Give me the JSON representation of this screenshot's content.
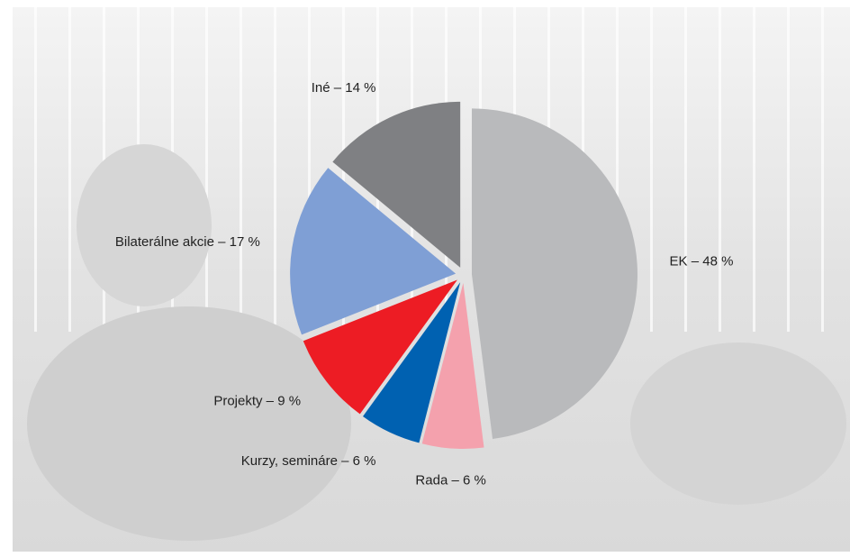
{
  "chart_data": {
    "type": "pie",
    "values": [
      48,
      6,
      6,
      9,
      17,
      14
    ],
    "value_labels": [
      "EK – 48 %",
      "Rada – 6 %",
      "Kurzy, semináre – 6 %",
      "Projekty – 9 %",
      "Bilaterálne akcie – 17 %",
      "Iné – 14 %"
    ],
    "colors": [
      "#b9babc",
      "#f4a1ad",
      "#0061b1",
      "#ed1c24",
      "#7f9fd5",
      "#7f8083"
    ]
  }
}
